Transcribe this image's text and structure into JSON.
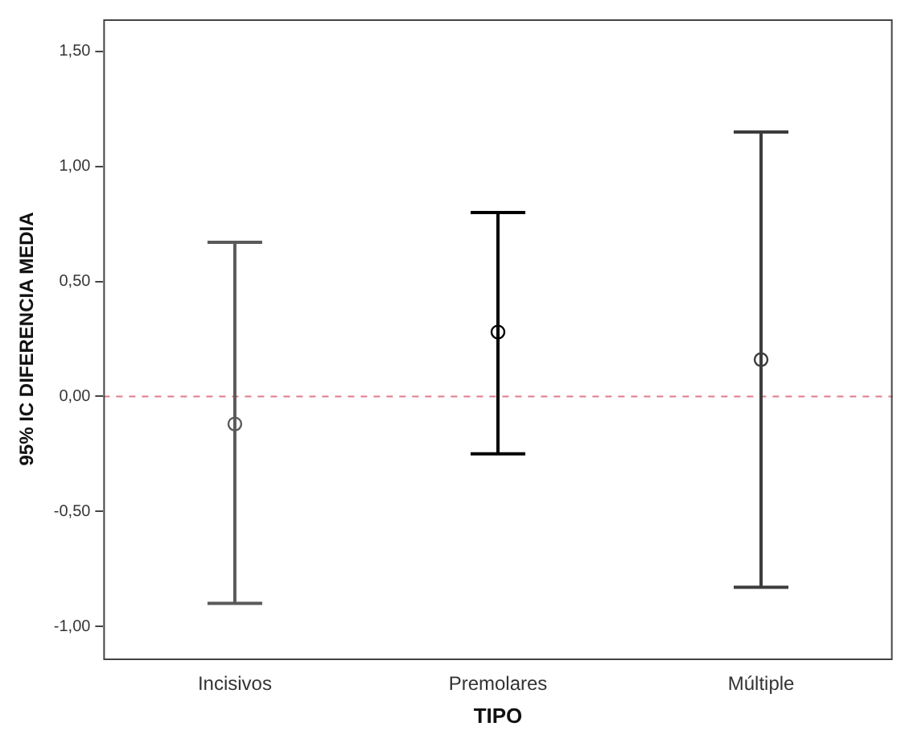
{
  "chart_data": {
    "type": "scatter",
    "xlabel": "TIPO",
    "ylabel": "95% IC DIFERENCIA MEDIA",
    "categories": [
      "Incisivos",
      "Premolares",
      "Múltiple"
    ],
    "values": [
      -0.12,
      0.28,
      0.16
    ],
    "errors": [
      [
        -0.9,
        0.67
      ],
      [
        -0.25,
        0.8
      ],
      [
        -0.83,
        1.15
      ]
    ],
    "colors": [
      "#5a5a5a",
      "#000000",
      "#3c3c3c"
    ],
    "ylim": [
      -1.14,
      1.64
    ],
    "yticks": [
      {
        "value": -1,
        "label": "-1,00"
      },
      {
        "value": -0.5,
        "label": "-0,50"
      },
      {
        "value": 0,
        "label": "0,00"
      },
      {
        "value": 0.5,
        "label": "0,50"
      },
      {
        "value": 1,
        "label": "1,00"
      },
      {
        "value": 1.5,
        "label": "1,50"
      }
    ],
    "ref_lines": [
      {
        "axis": "y",
        "value": 0,
        "color": "#e07a8a",
        "line_style": "dashed"
      }
    ],
    "marker": "circle",
    "grid": false,
    "legend": false
  }
}
